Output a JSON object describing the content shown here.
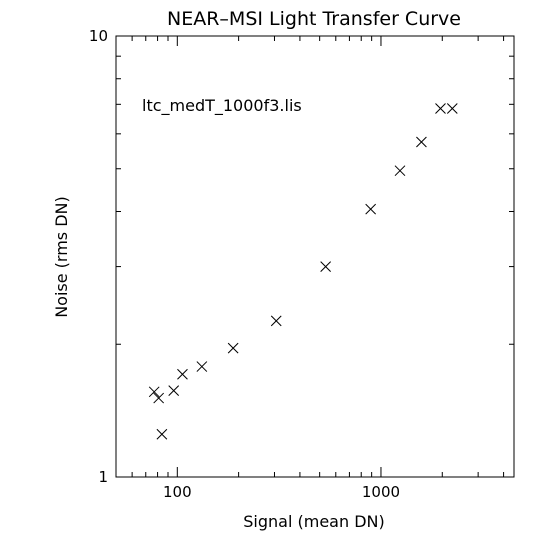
{
  "chart_data": {
    "type": "scatter",
    "title": "NEAR–MSI Light Transfer Curve",
    "xlabel": "Signal (mean DN)",
    "ylabel": "Noise (rms DN)",
    "annotation": "ltc_medT_1000f3.lis",
    "xscale": "log",
    "yscale": "log",
    "xlim": [
      50,
      4500
    ],
    "ylim": [
      1,
      10
    ],
    "x_tick_labels": [
      {
        "value": 100,
        "label": "100"
      },
      {
        "value": 1000,
        "label": "1000"
      }
    ],
    "y_tick_labels": [
      {
        "value": 1,
        "label": "1"
      },
      {
        "value": 10,
        "label": "10"
      }
    ],
    "marker": "x",
    "grid": false,
    "points": [
      {
        "x": 77,
        "y": 1.56
      },
      {
        "x": 81,
        "y": 1.51
      },
      {
        "x": 84,
        "y": 1.25
      },
      {
        "x": 96,
        "y": 1.57
      },
      {
        "x": 106,
        "y": 1.71
      },
      {
        "x": 132,
        "y": 1.78
      },
      {
        "x": 188,
        "y": 1.96
      },
      {
        "x": 306,
        "y": 2.26
      },
      {
        "x": 535,
        "y": 3.0
      },
      {
        "x": 890,
        "y": 4.05
      },
      {
        "x": 1240,
        "y": 4.95
      },
      {
        "x": 1580,
        "y": 5.75
      },
      {
        "x": 1960,
        "y": 6.85
      },
      {
        "x": 2240,
        "y": 6.85
      }
    ]
  }
}
